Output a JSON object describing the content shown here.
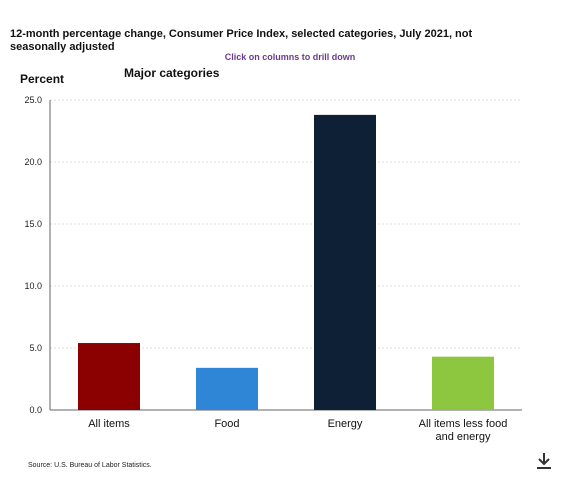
{
  "chart_data": {
    "type": "bar",
    "title": "12-month percentage change, Consumer Price Index, selected categories, July 2021, not seasonally adjusted",
    "subtitle": "Major categories",
    "ylabel": "Percent",
    "xlabel": "",
    "ylim": [
      0,
      25
    ],
    "yticks": [
      "0.0",
      "5.0",
      "10.0",
      "15.0",
      "20.0",
      "25.0"
    ],
    "grid": true,
    "categories": [
      "All items",
      "Food",
      "Energy",
      "All items less food and energy"
    ],
    "category_lines": [
      [
        "All items"
      ],
      [
        "Food"
      ],
      [
        "Energy"
      ],
      [
        "All items less food",
        "and energy"
      ]
    ],
    "values": [
      5.4,
      3.4,
      23.8,
      4.3
    ],
    "colors": [
      "#8b0000",
      "#2f86d6",
      "#0d2036",
      "#8dc63f"
    ]
  },
  "ui": {
    "drill_hint": "Click on columns to drill down",
    "source": "Source: U.S. Bureau of Labor Statistics.",
    "download_icon": "download-icon"
  }
}
